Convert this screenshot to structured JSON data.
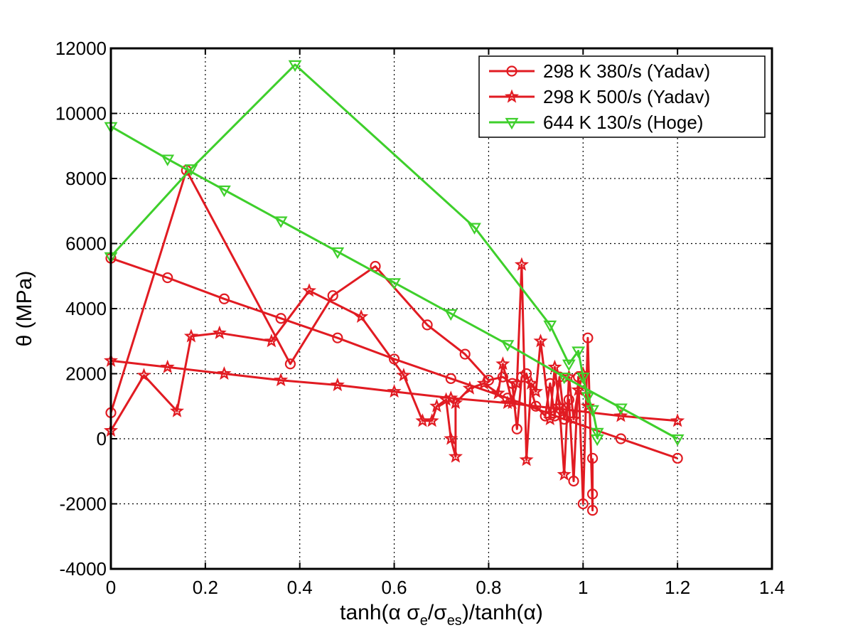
{
  "chart_data": {
    "type": "line",
    "title": "",
    "xlabel": {
      "prefix": "tanh(",
      "alpha1": "α",
      "sigma1": " σ",
      "sub1": "e",
      "slash": "/σ",
      "sub2": "es",
      "middle": ")/tanh(",
      "alpha2": "α",
      "suffix": ")"
    },
    "ylabel": {
      "theta": "θ",
      "unit": " (MPa)"
    },
    "xlim": [
      0,
      1.4
    ],
    "ylim": [
      -4000,
      12000
    ],
    "xticks": [
      0,
      0.2,
      0.4,
      0.6,
      0.8,
      1,
      1.2,
      1.4
    ],
    "xtick_labels": [
      "0",
      "0.2",
      "0.4",
      "0.6",
      "0.8",
      "1",
      "1.2",
      "1.4"
    ],
    "yticks": [
      -4000,
      -2000,
      0,
      2000,
      4000,
      6000,
      8000,
      10000,
      12000
    ],
    "ytick_labels": [
      "-4000",
      "-2000",
      "0",
      "2000",
      "4000",
      "6000",
      "8000",
      "10000",
      "12000"
    ],
    "grid": true,
    "legend_position": "top-right",
    "series": [
      {
        "name": "298 K 380/s (Yadav)",
        "color": "#e11b22",
        "marker": "circle",
        "points": [
          [
            0,
            800
          ],
          [
            0.16,
            8250
          ],
          [
            0.38,
            2300
          ],
          [
            0.47,
            4400
          ],
          [
            0.56,
            5300
          ],
          [
            0.67,
            3500
          ],
          [
            0.75,
            2600
          ],
          [
            0.8,
            1800
          ],
          [
            0.83,
            1900
          ],
          [
            0.85,
            1700
          ],
          [
            0.86,
            300
          ],
          [
            0.87,
            1900
          ],
          [
            0.88,
            2000
          ],
          [
            0.9,
            1000
          ],
          [
            0.92,
            700
          ],
          [
            0.93,
            1700
          ],
          [
            0.94,
            700
          ],
          [
            0.95,
            1900
          ],
          [
            0.96,
            600
          ],
          [
            0.97,
            1200
          ],
          [
            0.98,
            -1300
          ],
          [
            0.99,
            1900
          ],
          [
            1.0,
            -2000
          ],
          [
            1.01,
            3100
          ],
          [
            1.02,
            -2200
          ],
          [
            1.02,
            -1700
          ],
          [
            1.02,
            -600
          ],
          null,
          [
            0,
            5550
          ],
          [
            0.12,
            4950
          ],
          [
            0.24,
            4300
          ],
          [
            0.36,
            3700
          ],
          [
            0.48,
            3100
          ],
          [
            0.6,
            2450
          ],
          [
            0.72,
            1850
          ],
          [
            0.84,
            1250
          ],
          [
            0.96,
            600
          ],
          [
            1.08,
            0
          ],
          [
            1.2,
            -600
          ]
        ]
      },
      {
        "name": "298 K 500/s (Yadav)",
        "color": "#e11b22",
        "marker": "star",
        "points": [
          [
            0,
            250
          ],
          [
            0.07,
            1950
          ],
          [
            0.14,
            850
          ],
          [
            0.17,
            3150
          ],
          [
            0.23,
            3250
          ],
          [
            0.34,
            3000
          ],
          [
            0.42,
            4550
          ],
          [
            0.53,
            3750
          ],
          [
            0.62,
            1950
          ],
          [
            0.66,
            550
          ],
          [
            0.68,
            550
          ],
          [
            0.69,
            1000
          ],
          [
            0.71,
            1200
          ],
          [
            0.72,
            0
          ],
          [
            0.73,
            -550
          ],
          [
            0.73,
            1100
          ],
          [
            0.76,
            1550
          ],
          [
            0.79,
            1700
          ],
          [
            0.82,
            1400
          ],
          [
            0.83,
            2300
          ],
          [
            0.85,
            1100
          ],
          [
            0.86,
            1700
          ],
          [
            0.87,
            5350
          ],
          [
            0.88,
            -650
          ],
          [
            0.89,
            1700
          ],
          [
            0.9,
            1450
          ],
          [
            0.91,
            3000
          ],
          [
            0.93,
            600
          ],
          [
            0.94,
            2200
          ],
          [
            0.95,
            1000
          ],
          [
            0.96,
            -1100
          ],
          [
            0.97,
            1900
          ],
          [
            0.98,
            600
          ],
          [
            0.99,
            1500
          ],
          [
            1.0,
            2000
          ],
          [
            1.01,
            1000
          ],
          null,
          [
            0,
            2400
          ],
          [
            0.12,
            2200
          ],
          [
            0.24,
            2000
          ],
          [
            0.36,
            1800
          ],
          [
            0.48,
            1650
          ],
          [
            0.6,
            1450
          ],
          [
            0.72,
            1250
          ],
          [
            0.84,
            1100
          ],
          [
            0.96,
            900
          ],
          [
            1.08,
            700
          ],
          [
            1.2,
            550
          ]
        ]
      },
      {
        "name": "644 K 130/s (Hoge)",
        "color": "#3ecf2b",
        "marker": "triangle-down",
        "points": [
          [
            0,
            5600
          ],
          [
            0.17,
            8300
          ],
          [
            0.39,
            11500
          ],
          [
            0.77,
            6500
          ],
          [
            0.93,
            3500
          ],
          [
            0.97,
            2300
          ],
          [
            0.99,
            2700
          ],
          [
            1.0,
            1900
          ],
          [
            1.01,
            1300
          ],
          [
            1.02,
            900
          ],
          [
            1.03,
            200
          ],
          [
            1.03,
            0
          ],
          null,
          [
            0,
            9600
          ],
          [
            0.12,
            8600
          ],
          [
            0.24,
            7650
          ],
          [
            0.36,
            6700
          ],
          [
            0.48,
            5750
          ],
          [
            0.6,
            4800
          ],
          [
            0.72,
            3850
          ],
          [
            0.84,
            2900
          ],
          [
            0.96,
            1900
          ],
          [
            1.08,
            950
          ],
          [
            1.2,
            0
          ]
        ]
      }
    ]
  }
}
